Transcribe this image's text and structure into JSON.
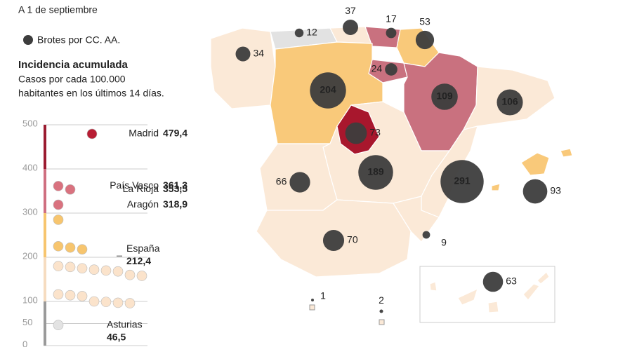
{
  "subtitle": "A 1 de septiembre",
  "legend": "Brotes por CC. AA.",
  "incidence": {
    "title": "Incidencia acumulada",
    "description": [
      "Casos por cada 100.000",
      "habitantes en los últimos 14 días."
    ],
    "ylim": [
      0,
      500
    ],
    "yticks": [
      0,
      50,
      100,
      200,
      300,
      400,
      500
    ],
    "color_scale": [
      {
        "from": 0,
        "to": 100,
        "color": "#9a9a9a"
      },
      {
        "from": 100,
        "to": 200,
        "color": "#f6dcc0"
      },
      {
        "from": 200,
        "to": 300,
        "color": "#f7c56e"
      },
      {
        "from": 300,
        "to": 400,
        "color": "#cf6f80"
      },
      {
        "from": 400,
        "to": 500,
        "color": "#9b1b30"
      }
    ],
    "categories": [
      "Madrid",
      "País Vasco",
      "La Rioja",
      "Aragón",
      null,
      "España",
      null,
      null,
      null,
      null,
      null,
      null,
      null,
      null,
      null,
      null,
      null,
      null,
      null,
      null,
      null,
      null,
      null,
      null,
      "Asturias"
    ],
    "values": [
      479.4,
      361.3,
      353.5,
      318.9,
      285,
      212.4,
      225,
      222,
      218,
      180,
      178,
      175,
      172,
      170,
      168,
      160,
      158,
      116,
      114,
      112,
      100,
      99,
      97,
      96,
      46.5
    ],
    "value_labels": [
      "479,4",
      "361,3",
      "353,5",
      "318,9",
      null,
      "212,4",
      null,
      null,
      null,
      null,
      null,
      null,
      null,
      null,
      null,
      null,
      null,
      null,
      null,
      null,
      null,
      null,
      null,
      null,
      "46,5"
    ],
    "dot_colors": [
      "#b81d33",
      "#d9727f",
      "#d9727f",
      "#d9727f",
      "#f7c56e",
      null,
      "#f7c56e",
      "#f7c56e",
      "#f7c56e",
      "#fbe3cb",
      "#fbe3cb",
      "#fbe3cb",
      "#fbe3cb",
      "#fbe3cb",
      "#fbe3cb",
      "#fbe3cb",
      "#fbe3cb",
      "#fbe3cb",
      "#fbe3cb",
      "#fbe3cb",
      "#fbe3cb",
      "#fbe3cb",
      "#fbe3cb",
      "#fbe3cb",
      "#e3e3e3"
    ]
  },
  "outbreaks": {
    "values": [
      12,
      37,
      17,
      53,
      34,
      24,
      204,
      109,
      106,
      73,
      189,
      291,
      93,
      66,
      70,
      9,
      63,
      1,
      2
    ],
    "color": "#3d3d3d"
  }
}
